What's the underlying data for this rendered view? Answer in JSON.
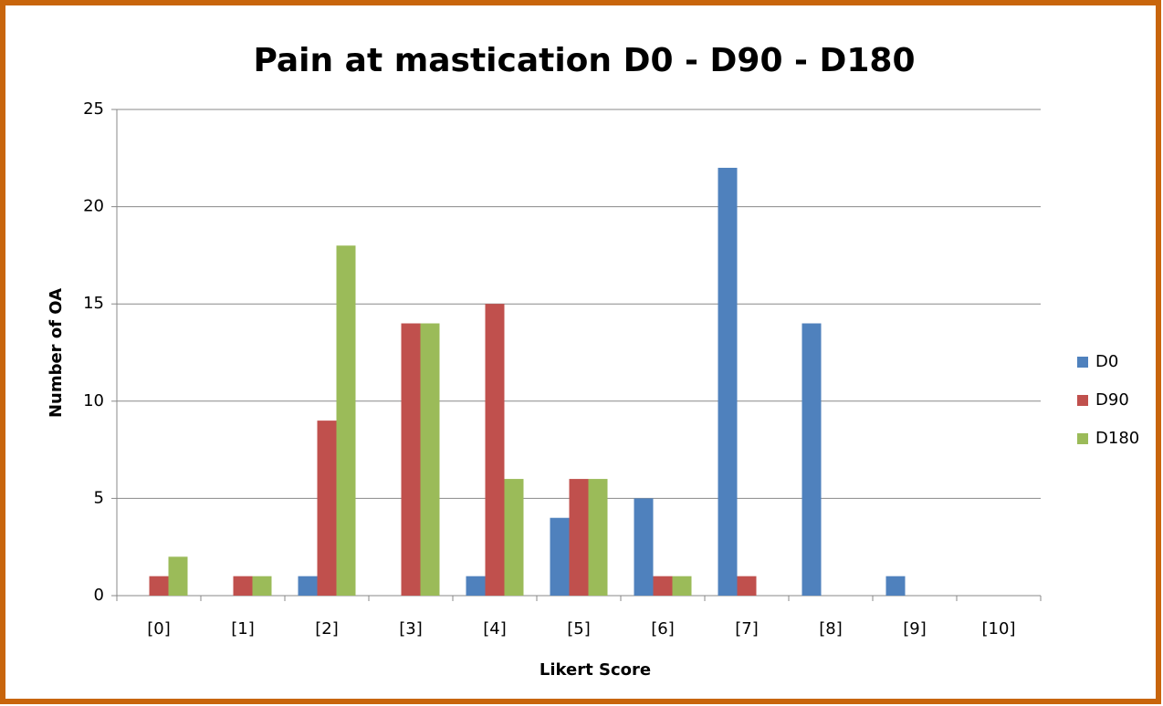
{
  "chart_data": {
    "type": "bar",
    "title": "Pain at mastication D0 - D90 - D180",
    "x_label": "Likert Score",
    "y_label": "Number of OA",
    "categories": [
      "[0]",
      "[1]",
      "[2]",
      "[3]",
      "[4]",
      "[5]",
      "[6]",
      "[7]",
      "[8]",
      "[9]",
      "[10]"
    ],
    "series": [
      {
        "name": "D0",
        "color": "#4f81bd",
        "values": [
          0,
          0,
          1,
          0,
          1,
          4,
          5,
          22,
          14,
          1,
          0
        ]
      },
      {
        "name": "D90",
        "color": "#c0504d",
        "values": [
          1,
          1,
          9,
          14,
          15,
          6,
          1,
          1,
          0,
          0,
          0
        ]
      },
      {
        "name": "D180",
        "color": "#9bbb59",
        "values": [
          2,
          1,
          18,
          14,
          6,
          6,
          1,
          0,
          0,
          0,
          0
        ]
      }
    ],
    "ylim": [
      0,
      25
    ],
    "yticks": [
      0,
      5,
      10,
      15,
      20,
      25
    ],
    "grid": true,
    "legend": "right"
  }
}
